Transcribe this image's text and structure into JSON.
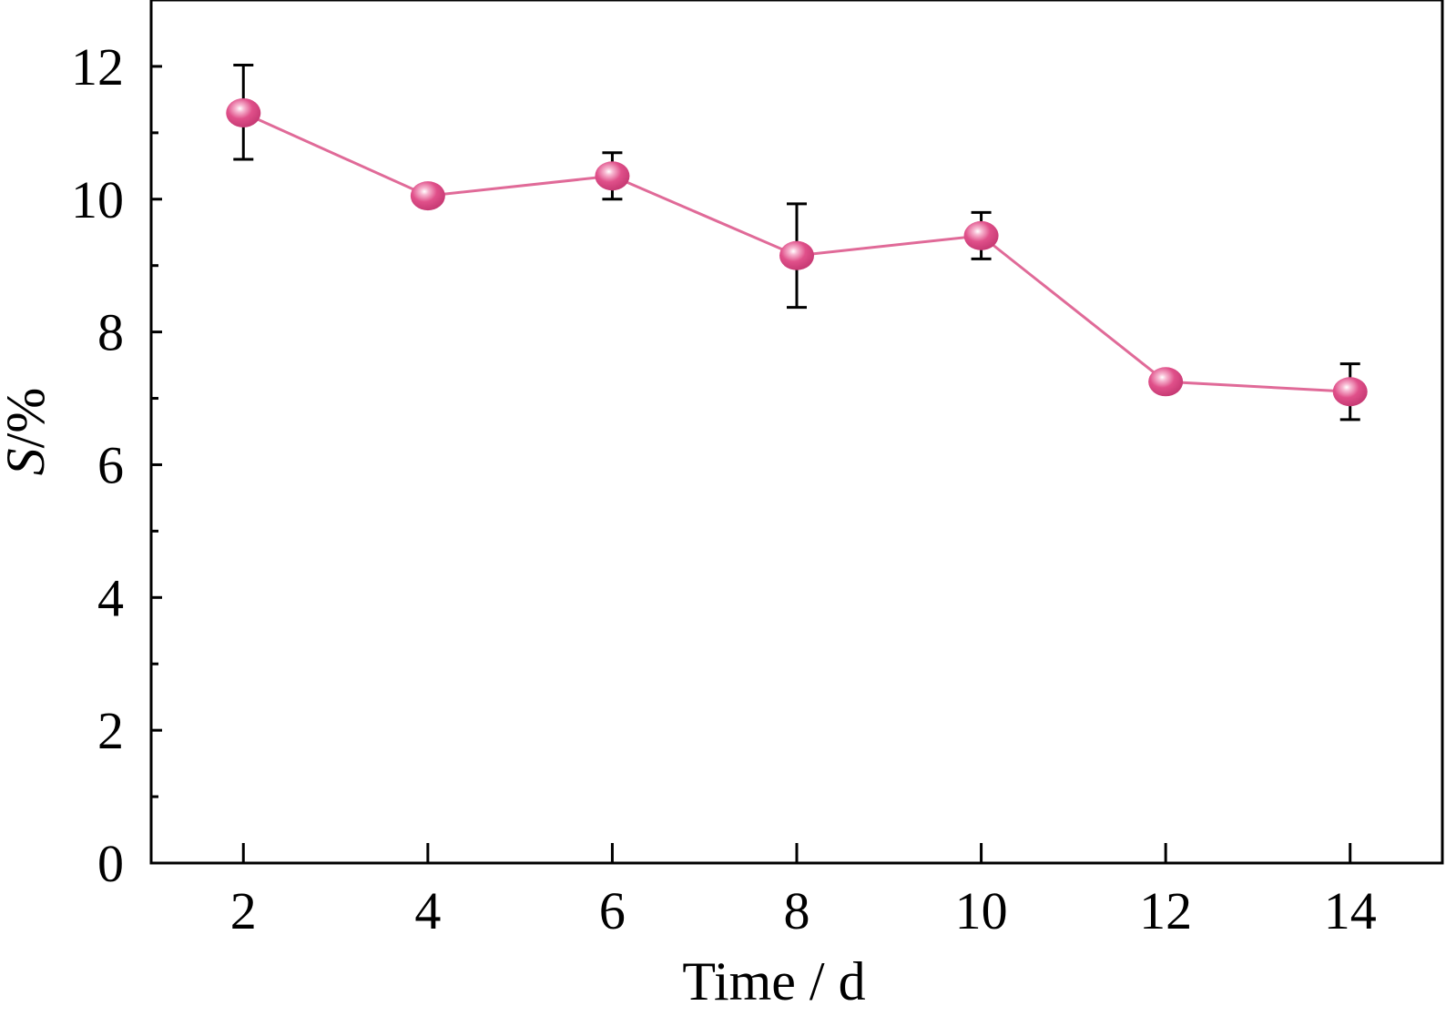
{
  "chart_data": {
    "type": "line",
    "title": "",
    "xlabel": "Time / d",
    "ylabel_italic": "S",
    "ylabel_rest": "/%",
    "xlim": [
      1,
      15
    ],
    "ylim": [
      0,
      13
    ],
    "xticks": [
      2,
      4,
      6,
      8,
      10,
      12,
      14
    ],
    "yticks": [
      0,
      2,
      4,
      6,
      8,
      10,
      12
    ],
    "yminor": [
      1,
      3,
      5,
      7,
      9,
      11
    ],
    "grid": false,
    "legend": "none",
    "series": [
      {
        "color": "#e06a98",
        "marker_color": "#df4f8a",
        "x": [
          2,
          4,
          6,
          8,
          10,
          12,
          14
        ],
        "y": [
          11.3,
          10.05,
          10.35,
          9.15,
          9.45,
          7.25,
          7.1
        ],
        "err_low": [
          0.7,
          0.15,
          0.35,
          0.78,
          0.35,
          0.12,
          0.42
        ],
        "err_high": [
          0.72,
          0.15,
          0.35,
          0.78,
          0.35,
          0.12,
          0.42
        ]
      }
    ]
  }
}
